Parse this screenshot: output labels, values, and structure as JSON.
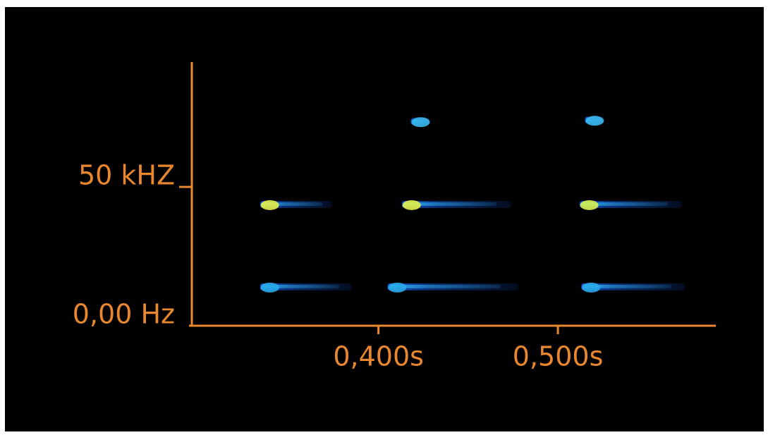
{
  "chart_data": {
    "type": "spectrogram",
    "xlim": [
      0.296,
      0.588
    ],
    "ylim": [
      0,
      95000
    ],
    "xticks": [
      {
        "value": 0.4,
        "label": "0,400s"
      },
      {
        "value": 0.5,
        "label": "0,500s"
      }
    ],
    "yticks": [
      {
        "value": 0,
        "label": "0,00 Hz"
      },
      {
        "value": 50000,
        "label": "50 kHZ"
      }
    ],
    "axis_color": "#e8872e",
    "segments": [
      {
        "x0": 0.334,
        "x1": 0.374,
        "y": 43700,
        "color": "#e6f04a"
      },
      {
        "x0": 0.334,
        "x1": 0.385,
        "y": 14000,
        "color": "#2aa8e8"
      },
      {
        "x0": 0.418,
        "x1": 0.429,
        "y": 73600,
        "color": "#3ab8f0"
      },
      {
        "x0": 0.413,
        "x1": 0.474,
        "y": 43700,
        "color": "#e6f04a"
      },
      {
        "x0": 0.405,
        "x1": 0.478,
        "y": 14000,
        "color": "#2aa8e8"
      },
      {
        "x0": 0.515,
        "x1": 0.526,
        "y": 74100,
        "color": "#3ab8f0"
      },
      {
        "x0": 0.512,
        "x1": 0.569,
        "y": 43700,
        "color": "#d8f050"
      },
      {
        "x0": 0.513,
        "x1": 0.571,
        "y": 14000,
        "color": "#2aa8e8"
      }
    ]
  }
}
